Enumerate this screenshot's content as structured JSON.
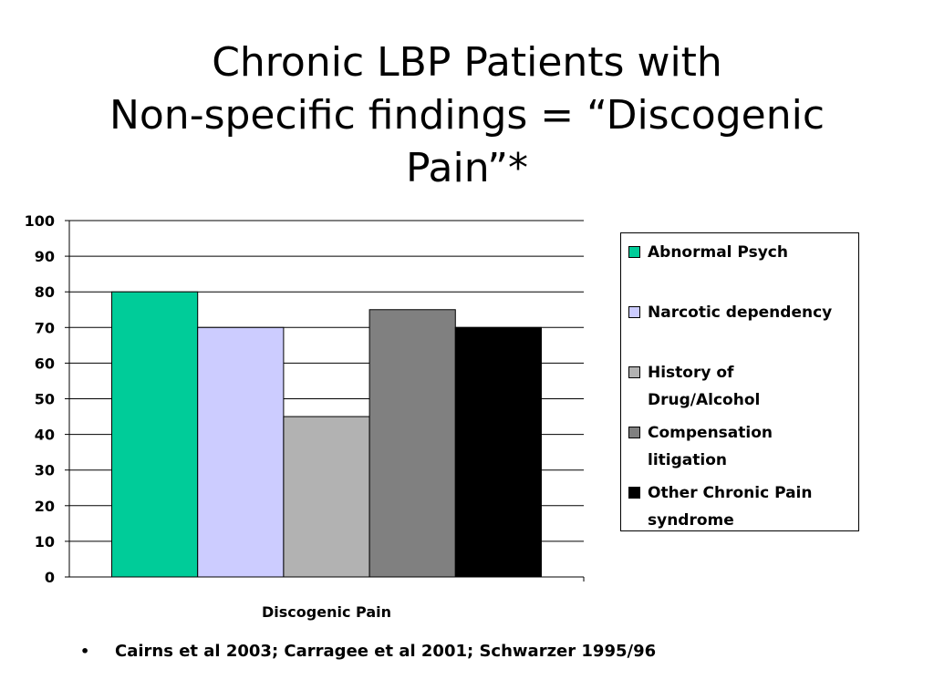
{
  "title": {
    "line1": "Chronic LBP Patients with",
    "line2": "Non-specific findings = “Discogenic",
    "line3": "Pain”*"
  },
  "chart_data": {
    "type": "bar",
    "categories": [
      "Discogenic Pain"
    ],
    "series": [
      {
        "name": "Abnormal Psych",
        "values": [
          80
        ],
        "color": "#00cc99"
      },
      {
        "name": "Narcotic dependency",
        "values": [
          70
        ],
        "color": "#ccccff"
      },
      {
        "name": "History of Drug/Alcohol",
        "values": [
          45
        ],
        "color": "#b2b2b2"
      },
      {
        "name": "Compensation litigation",
        "values": [
          75
        ],
        "color": "#808080"
      },
      {
        "name": "Other Chronic Pain syndrome",
        "values": [
          70
        ],
        "color": "#000000"
      }
    ],
    "ylim": [
      0,
      100
    ],
    "yticks": [
      0,
      10,
      20,
      30,
      40,
      50,
      60,
      70,
      80,
      90,
      100
    ],
    "grid": true,
    "legend_position": "right"
  },
  "legend": {
    "items": [
      {
        "line1": "Abnormal Psych",
        "line2": ""
      },
      {
        "line1": "Narcotic dependency",
        "line2": ""
      },
      {
        "line1": "History of",
        "line2": "Drug/Alcohol"
      },
      {
        "line1": "Compensation",
        "line2": "litigation"
      },
      {
        "line1": "Other Chronic Pain",
        "line2": "syndrome"
      }
    ]
  },
  "footer": {
    "bullet": "•",
    "text": "Cairns et al 2003; Carragee et al 2001; Schwarzer 1995/96"
  }
}
